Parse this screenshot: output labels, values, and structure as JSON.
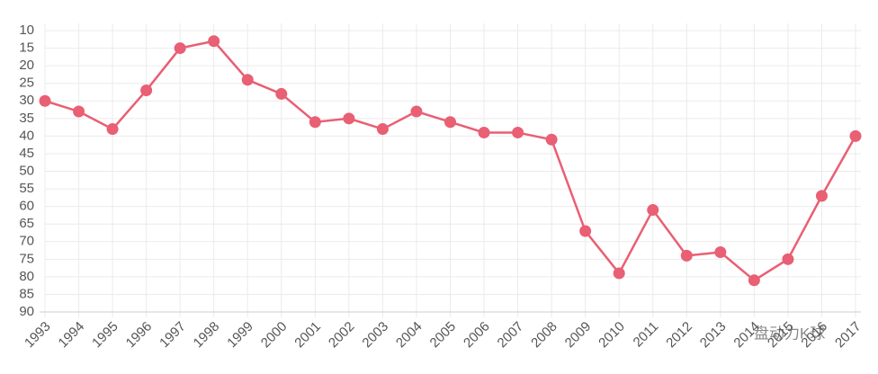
{
  "chart_data": {
    "type": "line",
    "categories": [
      "1993",
      "1994",
      "1995",
      "1996",
      "1997",
      "1998",
      "1999",
      "2000",
      "2001",
      "2002",
      "2003",
      "2004",
      "2005",
      "2006",
      "2007",
      "2008",
      "2009",
      "2010",
      "2011",
      "2012",
      "2013",
      "2014",
      "2015",
      "2016",
      "2017"
    ],
    "series": [
      {
        "color": "#e95f73",
        "values": [
          30,
          33,
          38,
          27,
          15,
          13,
          24,
          28,
          36,
          35,
          38,
          33,
          36,
          39,
          39,
          41,
          67,
          79,
          61,
          74,
          73,
          81,
          75,
          57,
          40
        ]
      }
    ],
    "ylim": [
      10,
      90
    ],
    "inverted": true,
    "yticks": [
      10,
      15,
      20,
      25,
      30,
      35,
      40,
      45,
      50,
      55,
      60,
      65,
      70,
      75,
      80,
      85,
      90
    ],
    "grid": true,
    "watermark": "盘动力K球"
  }
}
